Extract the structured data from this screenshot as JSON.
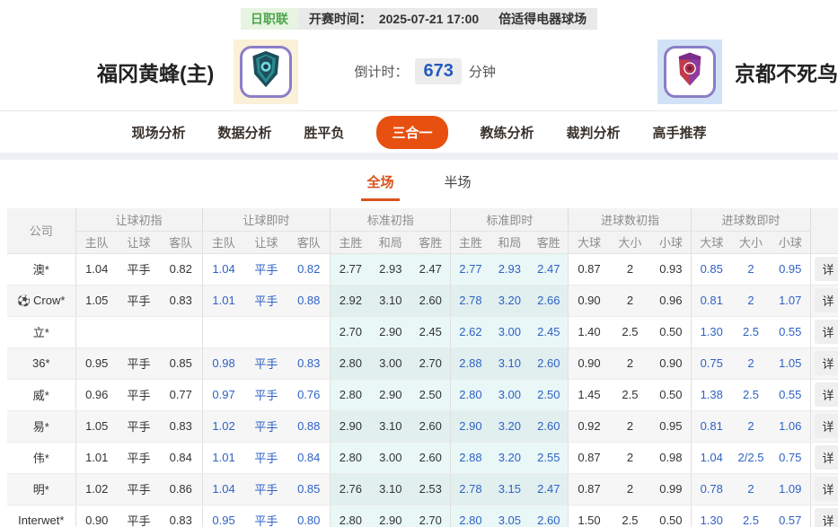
{
  "top_bar": {
    "league": "日职联",
    "kickoff_label": "开赛时间：",
    "kickoff_time": "2025-07-21 17:00",
    "venue": "倍适得电器球场"
  },
  "match": {
    "home_name": "福冈黄蜂(主)",
    "away_name": "京都不死鸟",
    "home_logo_icon": "teal-shield-crest-icon",
    "away_logo_icon": "red-purple-shield-crest-icon",
    "countdown_label": "倒计时：",
    "countdown_value": "673",
    "countdown_unit": "分钟"
  },
  "nav": {
    "tabs": [
      {
        "label": "现场分析",
        "active": false
      },
      {
        "label": "数据分析",
        "active": false
      },
      {
        "label": "胜平负",
        "active": false
      },
      {
        "label": "三合一",
        "active": true
      },
      {
        "label": "教练分析",
        "active": false
      },
      {
        "label": "裁判分析",
        "active": false
      },
      {
        "label": "高手推荐",
        "active": false
      }
    ]
  },
  "subtabs": [
    {
      "label": "全场",
      "active": true
    },
    {
      "label": "半场",
      "active": false
    }
  ],
  "table": {
    "company_header": "公司",
    "detail_label": "详",
    "groups": [
      {
        "label": "让球初指",
        "cols": [
          "主队",
          "让球",
          "客队"
        ]
      },
      {
        "label": "让球即时",
        "cols": [
          "主队",
          "让球",
          "客队"
        ]
      },
      {
        "label": "标准初指",
        "cols": [
          "主胜",
          "和局",
          "客胜"
        ]
      },
      {
        "label": "标准即时",
        "cols": [
          "主胜",
          "和局",
          "客胜"
        ]
      },
      {
        "label": "进球数初指",
        "cols": [
          "大球",
          "大小",
          "小球"
        ]
      },
      {
        "label": "进球数即时",
        "cols": [
          "大球",
          "大小",
          "小球"
        ]
      }
    ],
    "rows": [
      {
        "company": "澳*",
        "icon": "",
        "handicap_init": [
          "1.04",
          "平手",
          "0.82"
        ],
        "handicap_live": [
          "1.04",
          "平手",
          "0.82"
        ],
        "std_init": [
          "2.77",
          "2.93",
          "2.47"
        ],
        "std_live": [
          "2.77",
          "2.93",
          "2.47"
        ],
        "goals_init": [
          "0.87",
          "2",
          "0.93"
        ],
        "goals_live": [
          "0.85",
          "2",
          "0.95"
        ]
      },
      {
        "company": "Crow*",
        "icon": "soccer-ball-icon",
        "handicap_init": [
          "1.05",
          "平手",
          "0.83"
        ],
        "handicap_live": [
          "1.01",
          "平手",
          "0.88"
        ],
        "std_init": [
          "2.92",
          "3.10",
          "2.60"
        ],
        "std_live": [
          "2.78",
          "3.20",
          "2.66"
        ],
        "goals_init": [
          "0.90",
          "2",
          "0.96"
        ],
        "goals_live": [
          "0.81",
          "2",
          "1.07"
        ]
      },
      {
        "company": "立*",
        "icon": "",
        "handicap_init": [
          "",
          "",
          ""
        ],
        "handicap_live": [
          "",
          "",
          ""
        ],
        "std_init": [
          "2.70",
          "2.90",
          "2.45"
        ],
        "std_live": [
          "2.62",
          "3.00",
          "2.45"
        ],
        "goals_init": [
          "1.40",
          "2.5",
          "0.50"
        ],
        "goals_live": [
          "1.30",
          "2.5",
          "0.55"
        ]
      },
      {
        "company": "36*",
        "icon": "",
        "handicap_init": [
          "0.95",
          "平手",
          "0.85"
        ],
        "handicap_live": [
          "0.98",
          "平手",
          "0.83"
        ],
        "std_init": [
          "2.80",
          "3.00",
          "2.70"
        ],
        "std_live": [
          "2.88",
          "3.10",
          "2.60"
        ],
        "goals_init": [
          "0.90",
          "2",
          "0.90"
        ],
        "goals_live": [
          "0.75",
          "2",
          "1.05"
        ]
      },
      {
        "company": "威*",
        "icon": "",
        "handicap_init": [
          "0.96",
          "平手",
          "0.77"
        ],
        "handicap_live": [
          "0.97",
          "平手",
          "0.76"
        ],
        "std_init": [
          "2.80",
          "2.90",
          "2.50"
        ],
        "std_live": [
          "2.80",
          "3.00",
          "2.50"
        ],
        "goals_init": [
          "1.45",
          "2.5",
          "0.50"
        ],
        "goals_live": [
          "1.38",
          "2.5",
          "0.55"
        ]
      },
      {
        "company": "易*",
        "icon": "",
        "handicap_init": [
          "1.05",
          "平手",
          "0.83"
        ],
        "handicap_live": [
          "1.02",
          "平手",
          "0.88"
        ],
        "std_init": [
          "2.90",
          "3.10",
          "2.60"
        ],
        "std_live": [
          "2.90",
          "3.20",
          "2.60"
        ],
        "goals_init": [
          "0.92",
          "2",
          "0.95"
        ],
        "goals_live": [
          "0.81",
          "2",
          "1.06"
        ]
      },
      {
        "company": "伟*",
        "icon": "",
        "handicap_init": [
          "1.01",
          "平手",
          "0.84"
        ],
        "handicap_live": [
          "1.01",
          "平手",
          "0.84"
        ],
        "std_init": [
          "2.80",
          "3.00",
          "2.60"
        ],
        "std_live": [
          "2.88",
          "3.20",
          "2.55"
        ],
        "goals_init": [
          "0.87",
          "2",
          "0.98"
        ],
        "goals_live": [
          "1.04",
          "2/2.5",
          "0.75"
        ]
      },
      {
        "company": "明*",
        "icon": "",
        "handicap_init": [
          "1.02",
          "平手",
          "0.86"
        ],
        "handicap_live": [
          "1.04",
          "平手",
          "0.85"
        ],
        "std_init": [
          "2.76",
          "3.10",
          "2.53"
        ],
        "std_live": [
          "2.78",
          "3.15",
          "2.47"
        ],
        "goals_init": [
          "0.87",
          "2",
          "0.99"
        ],
        "goals_live": [
          "0.78",
          "2",
          "1.09"
        ]
      },
      {
        "company": "Interwet*",
        "icon": "",
        "handicap_init": [
          "0.90",
          "平手",
          "0.83"
        ],
        "handicap_live": [
          "0.95",
          "平手",
          "0.80"
        ],
        "std_init": [
          "2.80",
          "2.90",
          "2.70"
        ],
        "std_live": [
          "2.80",
          "3.05",
          "2.60"
        ],
        "goals_init": [
          "1.50",
          "2.5",
          "0.50"
        ],
        "goals_live": [
          "1.30",
          "2.5",
          "0.57"
        ]
      }
    ]
  },
  "colors": {
    "accent_orange": "#e8500f",
    "subtab_orange": "#d9531e",
    "live_blue": "#2f62c4",
    "badge_green_text": "#4ca64c",
    "badge_green_bg": "#e7f4e1",
    "countdown_blue": "#2459c0",
    "std_cyan_bg": "#e9f7f7",
    "header_gray_bg": "#f3f3f3"
  }
}
